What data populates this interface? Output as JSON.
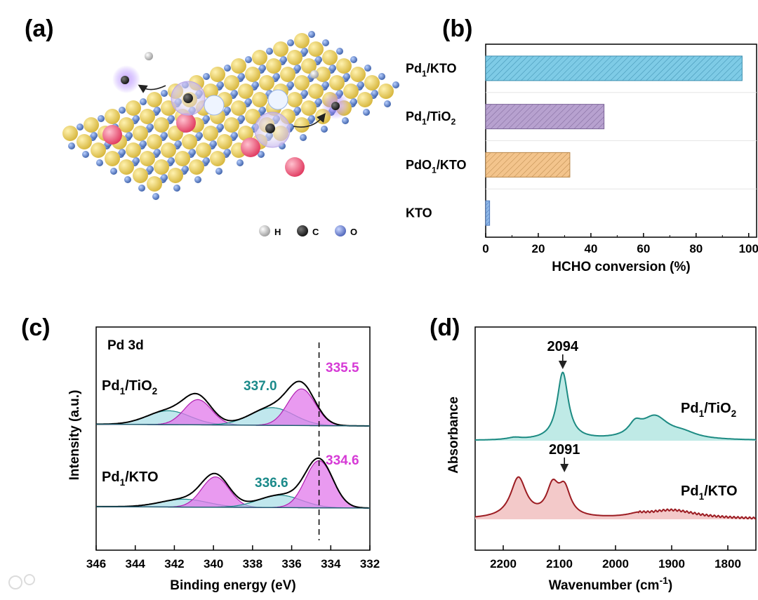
{
  "panels": {
    "a": {
      "label": "(a)",
      "legend": [
        {
          "symbol": "H",
          "color": "#d0d0d0"
        },
        {
          "symbol": "C",
          "color": "#2a2a2a"
        },
        {
          "symbol": "O",
          "color": "#6f86d6"
        }
      ]
    },
    "b": {
      "label": "(b)"
    },
    "c": {
      "label": "(c)"
    },
    "d": {
      "label": "(d)"
    }
  },
  "chart_data": [
    {
      "panel": "b",
      "type": "bar",
      "orientation": "horizontal",
      "categories": [
        "Pd1/KTO",
        "Pd1/TiO2",
        "PdO1/KTO",
        "KTO"
      ],
      "category_sub": [
        [
          "Pd",
          "1",
          "/KTO",
          ""
        ],
        [
          "Pd",
          "1",
          "/TiO",
          "2"
        ],
        [
          "PdO",
          "1",
          "/KTO",
          ""
        ],
        [
          "KTO",
          "",
          "",
          ""
        ]
      ],
      "values": [
        97.5,
        45,
        32,
        1.5
      ],
      "colors": [
        "#7ecbe6",
        "#b7a1cf",
        "#f3c48c",
        "#8fb7e6"
      ],
      "xlabel": "HCHO conversion (%)",
      "xlim": [
        0,
        103
      ],
      "xticks": [
        0,
        20,
        40,
        60,
        80,
        100
      ],
      "pattern": "hatched"
    },
    {
      "panel": "c",
      "type": "line",
      "title": "Pd 3d",
      "xlabel": "Binding energy (eV)",
      "ylabel": "Intensity (a.u.)",
      "xlim": [
        346,
        332
      ],
      "xticks": [
        346,
        344,
        342,
        340,
        338,
        336,
        334,
        332
      ],
      "reference_line": 334.6,
      "series": [
        {
          "name": "Pd1/TiO2",
          "name_parts": [
            "Pd",
            "1",
            "/TiO",
            "2"
          ],
          "components": [
            {
              "center": 342.3,
              "height": 0.55,
              "width": 1.1,
              "color": "teal"
            },
            {
              "center": 340.8,
              "height": 1.0,
              "width": 0.7,
              "color": "magenta"
            },
            {
              "center": 337.0,
              "height": 0.7,
              "width": 1.1,
              "color": "teal"
            },
            {
              "center": 335.5,
              "height": 1.45,
              "width": 0.7,
              "color": "magenta"
            }
          ],
          "peak_labels": [
            {
              "text": "337.0",
              "color": "teal"
            },
            {
              "text": "335.5",
              "color": "magenta"
            }
          ]
        },
        {
          "name": "Pd1/KTO",
          "name_parts": [
            "Pd",
            "1",
            "/KTO",
            ""
          ],
          "components": [
            {
              "center": 341.5,
              "height": 0.35,
              "width": 1.2,
              "color": "teal"
            },
            {
              "center": 339.9,
              "height": 1.35,
              "width": 0.7,
              "color": "magenta"
            },
            {
              "center": 336.6,
              "height": 0.55,
              "width": 1.1,
              "color": "teal"
            },
            {
              "center": 334.6,
              "height": 2.1,
              "width": 0.7,
              "color": "magenta"
            }
          ],
          "peak_labels": [
            {
              "text": "336.6",
              "color": "teal"
            },
            {
              "text": "334.6",
              "color": "magenta"
            }
          ]
        }
      ]
    },
    {
      "panel": "d",
      "type": "line",
      "xlabel_main": "Wavenumber (cm",
      "xlabel_sup": "-1",
      "xlabel_end": ")",
      "ylabel": "Absorbance",
      "xlim": [
        2250,
        1750
      ],
      "xticks": [
        2200,
        2100,
        2000,
        1900,
        1800
      ],
      "series": [
        {
          "name": "Pd1/TiO2",
          "name_parts": [
            "Pd",
            "1",
            "/TiO",
            "2"
          ],
          "color": "#1c8a82",
          "fill": "#bfeae6",
          "annotation": "2094",
          "annotation_x": 2094,
          "peaks": [
            {
              "center": 2094,
              "height": 1.0,
              "width": 12
            },
            {
              "center": 1965,
              "height": 0.17,
              "width": 14
            },
            {
              "center": 1930,
              "height": 0.33,
              "width": 30
            },
            {
              "center": 1880,
              "height": 0.08,
              "width": 30
            },
            {
              "center": 2180,
              "height": 0.03,
              "width": 15
            }
          ]
        },
        {
          "name": "Pd1/KTO",
          "name_parts": [
            "Pd",
            "1",
            "/KTO",
            ""
          ],
          "color": "#9c1c22",
          "fill": "#f3c9c9",
          "annotation": "2091",
          "annotation_x": 2091,
          "peaks": [
            {
              "center": 2173,
              "height": 0.92,
              "width": 17
            },
            {
              "center": 2112,
              "height": 0.66,
              "width": 13
            },
            {
              "center": 2091,
              "height": 0.62,
              "width": 13
            },
            {
              "center": 1900,
              "height": 0.2,
              "width": 55
            },
            {
              "center": 1960,
              "height": 0.06,
              "width": 20
            }
          ]
        }
      ]
    }
  ]
}
